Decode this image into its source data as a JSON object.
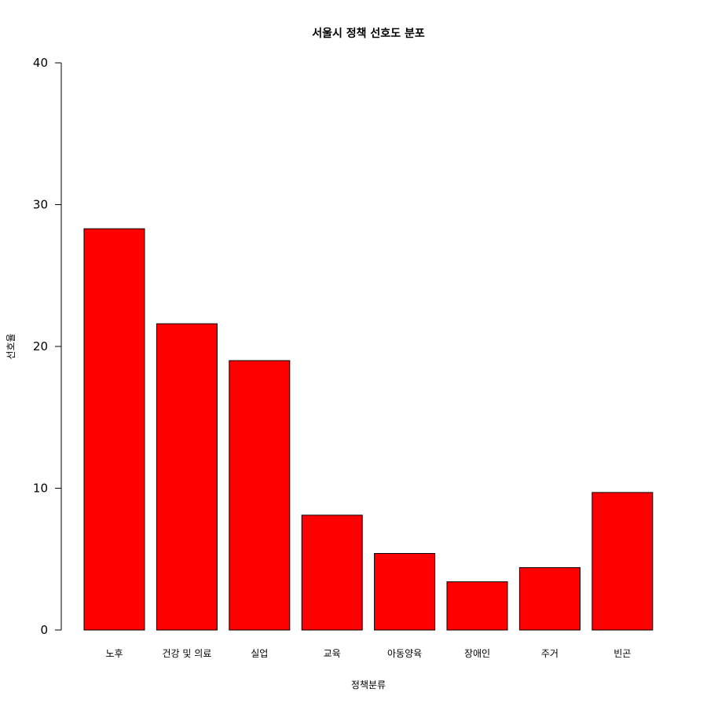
{
  "chart_data": {
    "type": "bar",
    "title": "서울시 정책 선호도 분포",
    "xlabel": "정책분류",
    "ylabel": "선호율",
    "categories": [
      "노후",
      "건강 및 의료",
      "실업",
      "교육",
      "아동양육",
      "장애인",
      "주거",
      "빈곤"
    ],
    "values": [
      28.3,
      21.6,
      19.0,
      8.1,
      5.4,
      3.4,
      4.4,
      9.7
    ],
    "ylim": [
      0,
      40
    ],
    "yticks": [
      0,
      10,
      20,
      30,
      40
    ],
    "bar_color": "#ff0000",
    "grid": false,
    "legend": "none"
  }
}
